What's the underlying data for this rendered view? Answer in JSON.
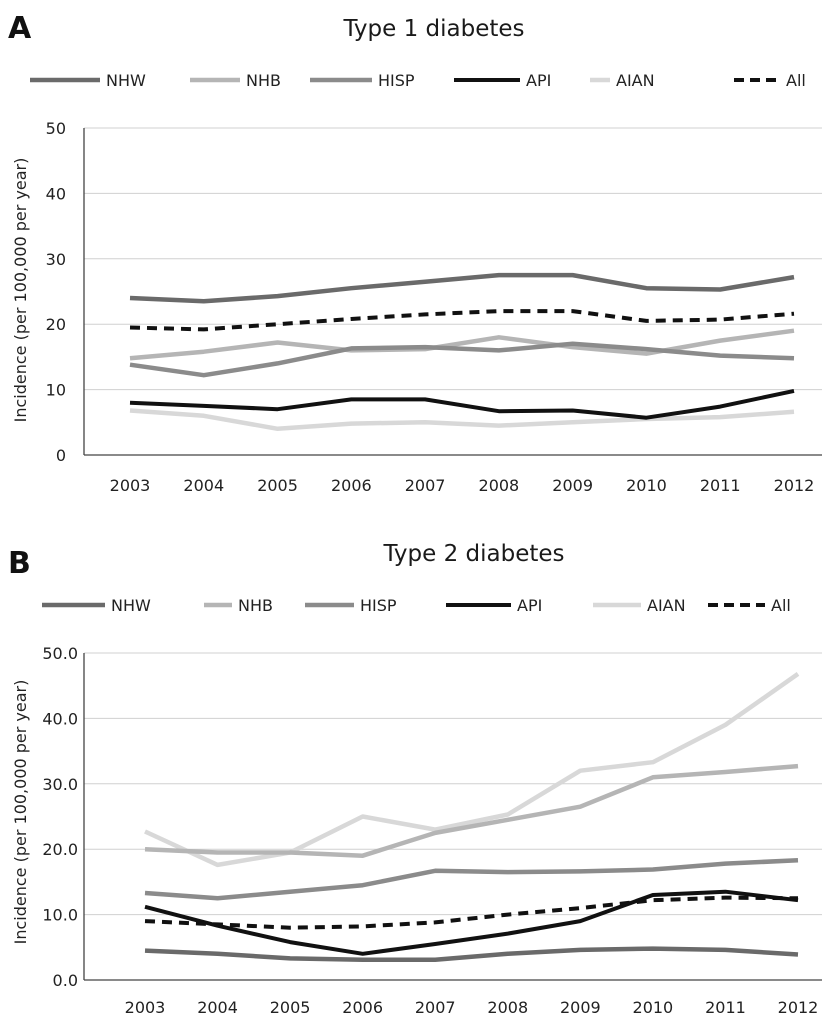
{
  "colors": {
    "NHW": "#6a6a6a",
    "NHB": "#b5b5b5",
    "HISP": "#8b8b8b",
    "API": "#111111",
    "AIAN": "#d8d8d8",
    "All": "#111111"
  },
  "chart_data": [
    {
      "panel": "A",
      "type": "line",
      "title": "Type 1 diabetes",
      "xlabel": "",
      "ylabel": "Incidence (per 100,000 per year)",
      "ylim": [
        0,
        50
      ],
      "yticks": [
        "0",
        "10",
        "20",
        "30",
        "40",
        "50"
      ],
      "grid": true,
      "legend": "top",
      "categories": [
        "2003",
        "2004",
        "2005",
        "2006",
        "2007",
        "2008",
        "2009",
        "2010",
        "2011",
        "2012"
      ],
      "series": [
        {
          "name": "NHW",
          "values": [
            24.0,
            23.5,
            24.3,
            25.5,
            26.5,
            27.5,
            27.5,
            25.5,
            25.3,
            27.2
          ]
        },
        {
          "name": "NHB",
          "values": [
            14.8,
            15.8,
            17.2,
            16.0,
            16.2,
            18.0,
            16.5,
            15.5,
            17.5,
            19.0
          ]
        },
        {
          "name": "HISP",
          "values": [
            13.8,
            12.2,
            14.0,
            16.3,
            16.5,
            16.0,
            17.0,
            16.2,
            15.2,
            14.8
          ]
        },
        {
          "name": "API",
          "values": [
            8.0,
            7.5,
            7.0,
            8.5,
            8.5,
            6.7,
            6.8,
            5.7,
            7.4,
            9.8
          ]
        },
        {
          "name": "AIAN",
          "values": [
            6.8,
            6.0,
            4.0,
            4.8,
            5.0,
            4.5,
            5.0,
            5.5,
            5.8,
            6.6
          ]
        },
        {
          "name": "All",
          "values": [
            19.5,
            19.2,
            20.0,
            20.8,
            21.5,
            22.0,
            22.0,
            20.5,
            20.7,
            21.6
          ]
        }
      ]
    },
    {
      "panel": "B",
      "type": "line",
      "title": "Type 2 diabetes",
      "xlabel": "",
      "ylabel": "Incidence (per 100,000 per year)",
      "ylim": [
        0,
        50
      ],
      "yticks": [
        "0.0",
        "10.0",
        "20.0",
        "30.0",
        "40.0",
        "50.0"
      ],
      "grid": true,
      "legend": "top",
      "categories": [
        "2003",
        "2004",
        "2005",
        "2006",
        "2007",
        "2008",
        "2009",
        "2010",
        "2011",
        "2012"
      ],
      "series": [
        {
          "name": "NHW",
          "values": [
            4.5,
            4.0,
            3.3,
            3.1,
            3.1,
            4.0,
            4.6,
            4.8,
            4.6,
            3.9
          ]
        },
        {
          "name": "NHB",
          "values": [
            20.0,
            19.5,
            19.5,
            19.0,
            22.5,
            24.5,
            26.5,
            31.0,
            31.8,
            32.7
          ]
        },
        {
          "name": "HISP",
          "values": [
            13.3,
            12.5,
            13.5,
            14.5,
            16.7,
            16.5,
            16.6,
            16.9,
            17.8,
            18.3
          ]
        },
        {
          "name": "API",
          "values": [
            11.2,
            8.3,
            5.8,
            4.0,
            5.5,
            7.1,
            9.0,
            13.0,
            13.5,
            12.2
          ]
        },
        {
          "name": "AIAN",
          "values": [
            22.7,
            17.6,
            19.5,
            25.0,
            23.0,
            25.3,
            32.0,
            33.3,
            39.0,
            46.8
          ]
        },
        {
          "name": "All",
          "values": [
            9.0,
            8.5,
            8.0,
            8.2,
            8.8,
            10.0,
            11.0,
            12.2,
            12.6,
            12.5
          ]
        }
      ]
    }
  ]
}
